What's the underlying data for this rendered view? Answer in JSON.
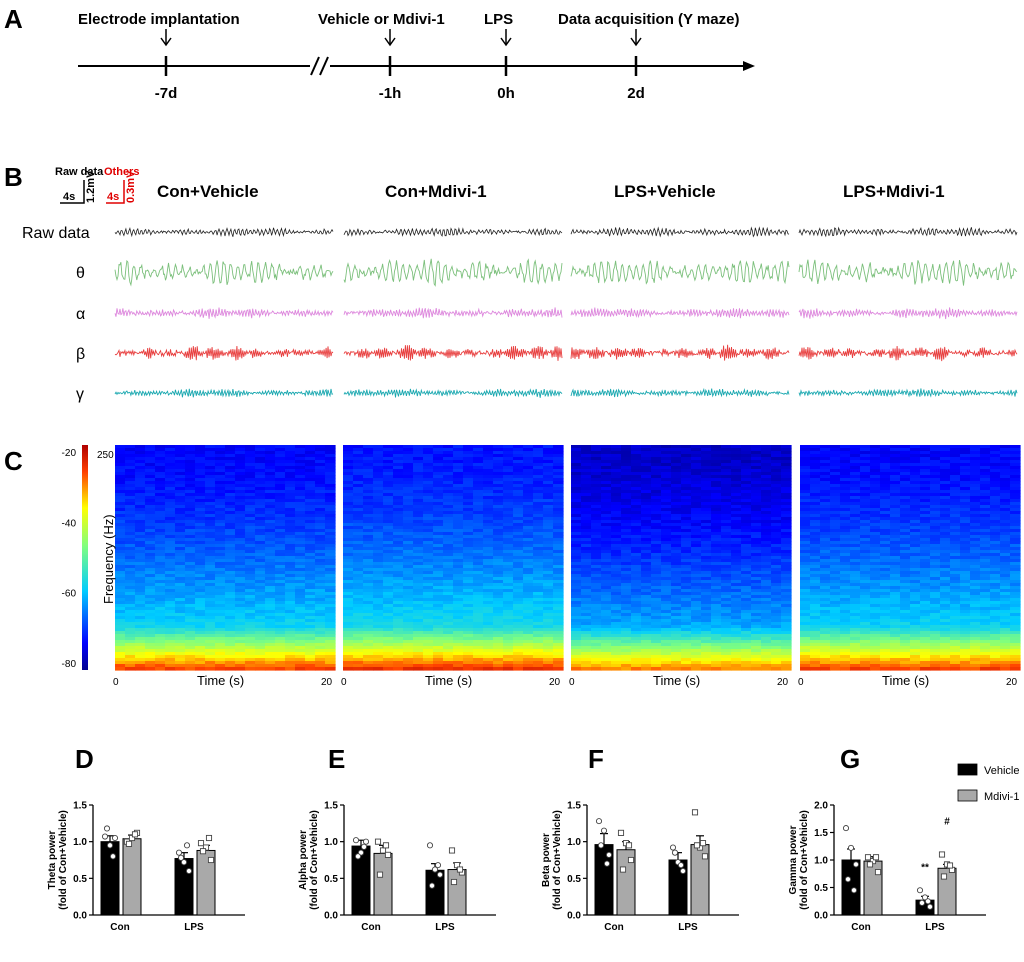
{
  "panels": {
    "a": "A",
    "b": "B",
    "c": "C",
    "d": "D",
    "e": "E",
    "f": "F",
    "g": "G"
  },
  "timeline": {
    "events": [
      {
        "label": "Electrode implantation",
        "time": "-7d"
      },
      {
        "label": "Vehicle or Mdivi-1",
        "time": "-1h"
      },
      {
        "label": "LPS",
        "time": "0h"
      },
      {
        "label": "Data acquisition (Y maze)",
        "time": "2d"
      }
    ]
  },
  "traces": {
    "scalebar_raw": {
      "label": "Raw data",
      "time": "4s",
      "amp": "1.2mV"
    },
    "scalebar_others": {
      "label": "Others",
      "time": "4s",
      "amp": "0.3mV"
    },
    "conditions": [
      "Con+Vehicle",
      "Con+Mdivi-1",
      "LPS+Vehicle",
      "LPS+Mdivi-1"
    ],
    "rows": [
      "Raw data",
      "θ",
      "α",
      "β",
      "γ"
    ],
    "colors": {
      "Raw data": "#222222",
      "θ": "#7cc07c",
      "α": "#dd88dd",
      "β": "#e84040",
      "γ": "#1aa8b0"
    }
  },
  "spectrogram": {
    "colorbar_ticks": [
      "-20",
      "-40",
      "-60",
      "-80"
    ],
    "colorbar_range": [
      -82,
      -18
    ],
    "ylabel": "Frequency (Hz)",
    "ymax": "250",
    "xlabel": "Time (s)",
    "xticks": [
      "0",
      "20"
    ]
  },
  "chart_data": [
    {
      "type": "bar",
      "panel": "D",
      "ylabel": "Theta power\n(fold of Con+Vehicle)",
      "categories": [
        "Con",
        "LPS"
      ],
      "ylim": [
        0,
        1.5
      ],
      "yticks": [
        "0.0",
        "0.5",
        "1.0",
        "1.5"
      ],
      "series": [
        {
          "name": "Vehicle",
          "values": [
            1.0,
            0.77
          ],
          "sem": [
            0.08,
            0.08
          ],
          "points": [
            [
              1.07,
              0.95,
              1.05,
              1.18,
              0.8
            ],
            [
              0.85,
              0.72,
              0.6,
              0.78,
              0.95
            ]
          ]
        },
        {
          "name": "Mdivi-1",
          "values": [
            1.04,
            0.88
          ],
          "sem": [
            0.05,
            0.07
          ],
          "points": [
            [
              1.0,
              1.05,
              1.12,
              0.97,
              1.1
            ],
            [
              0.98,
              0.92,
              0.75,
              0.87,
              1.05
            ]
          ]
        }
      ],
      "annotations": []
    },
    {
      "type": "bar",
      "panel": "E",
      "ylabel": "Alpha power\n(fold of Con+Vehicle)",
      "categories": [
        "Con",
        "LPS"
      ],
      "ylim": [
        0,
        1.5
      ],
      "yticks": [
        "0.0",
        "0.5",
        "1.0",
        "1.5"
      ],
      "series": [
        {
          "name": "Vehicle",
          "values": [
            0.94,
            0.61
          ],
          "sem": [
            0.08,
            0.09
          ],
          "points": [
            [
              1.02,
              0.85,
              1.0,
              0.8,
              0.93
            ],
            [
              0.95,
              0.62,
              0.55,
              0.4,
              0.68
            ]
          ]
        },
        {
          "name": "Mdivi-1",
          "values": [
            0.84,
            0.62
          ],
          "sem": [
            0.11,
            0.09
          ],
          "points": [
            [
              1.0,
              0.88,
              0.82,
              0.55,
              0.95
            ],
            [
              0.88,
              0.68,
              0.58,
              0.45,
              0.62
            ]
          ]
        }
      ],
      "annotations": []
    },
    {
      "type": "bar",
      "panel": "F",
      "ylabel": "Beta power\n(fold of Con+Vehicle)",
      "categories": [
        "Con",
        "LPS"
      ],
      "ylim": [
        0,
        1.5
      ],
      "yticks": [
        "0.0",
        "0.5",
        "1.0",
        "1.5"
      ],
      "series": [
        {
          "name": "Vehicle",
          "values": [
            0.96,
            0.75
          ],
          "sem": [
            0.15,
            0.1
          ],
          "points": [
            [
              1.28,
              1.15,
              0.82,
              0.95,
              0.7
            ],
            [
              0.92,
              0.72,
              0.6,
              0.85,
              0.68
            ]
          ]
        },
        {
          "name": "Mdivi-1",
          "values": [
            0.89,
            0.96
          ],
          "sem": [
            0.11,
            0.12
          ],
          "points": [
            [
              1.12,
              0.98,
              0.75,
              0.62,
              0.95
            ],
            [
              1.4,
              0.92,
              0.8,
              0.95,
              0.98
            ]
          ]
        }
      ],
      "annotations": []
    },
    {
      "type": "bar",
      "panel": "G",
      "ylabel": "Gamma power\n(fold of Con+Vehicle)",
      "categories": [
        "Con",
        "LPS"
      ],
      "ylim": [
        0,
        2.0
      ],
      "yticks": [
        "0.0",
        "0.5",
        "1.0",
        "1.5",
        "2.0"
      ],
      "series": [
        {
          "name": "Vehicle",
          "values": [
            1.0,
            0.27
          ],
          "sem": [
            0.2,
            0.07
          ],
          "points": [
            [
              1.58,
              1.22,
              0.92,
              0.65,
              0.45
            ],
            [
              0.45,
              0.32,
              0.15,
              0.22,
              0.25
            ]
          ]
        },
        {
          "name": "Mdivi-1",
          "values": [
            0.98,
            0.85
          ],
          "sem": [
            0.08,
            0.07
          ],
          "points": [
            [
              1.05,
              0.98,
              0.78,
              0.92,
              1.05
            ],
            [
              1.1,
              0.92,
              0.82,
              0.7,
              0.9
            ]
          ]
        }
      ],
      "annotations": [
        {
          "text": "**",
          "category": "LPS",
          "series": "Vehicle"
        },
        {
          "text": "#",
          "category": "LPS",
          "series": "Mdivi-1"
        }
      ],
      "legend": [
        "Vehicle",
        "Mdivi-1"
      ]
    }
  ],
  "colors": {
    "vehicle": "#000000",
    "mdivi": "#a9a9a9"
  }
}
